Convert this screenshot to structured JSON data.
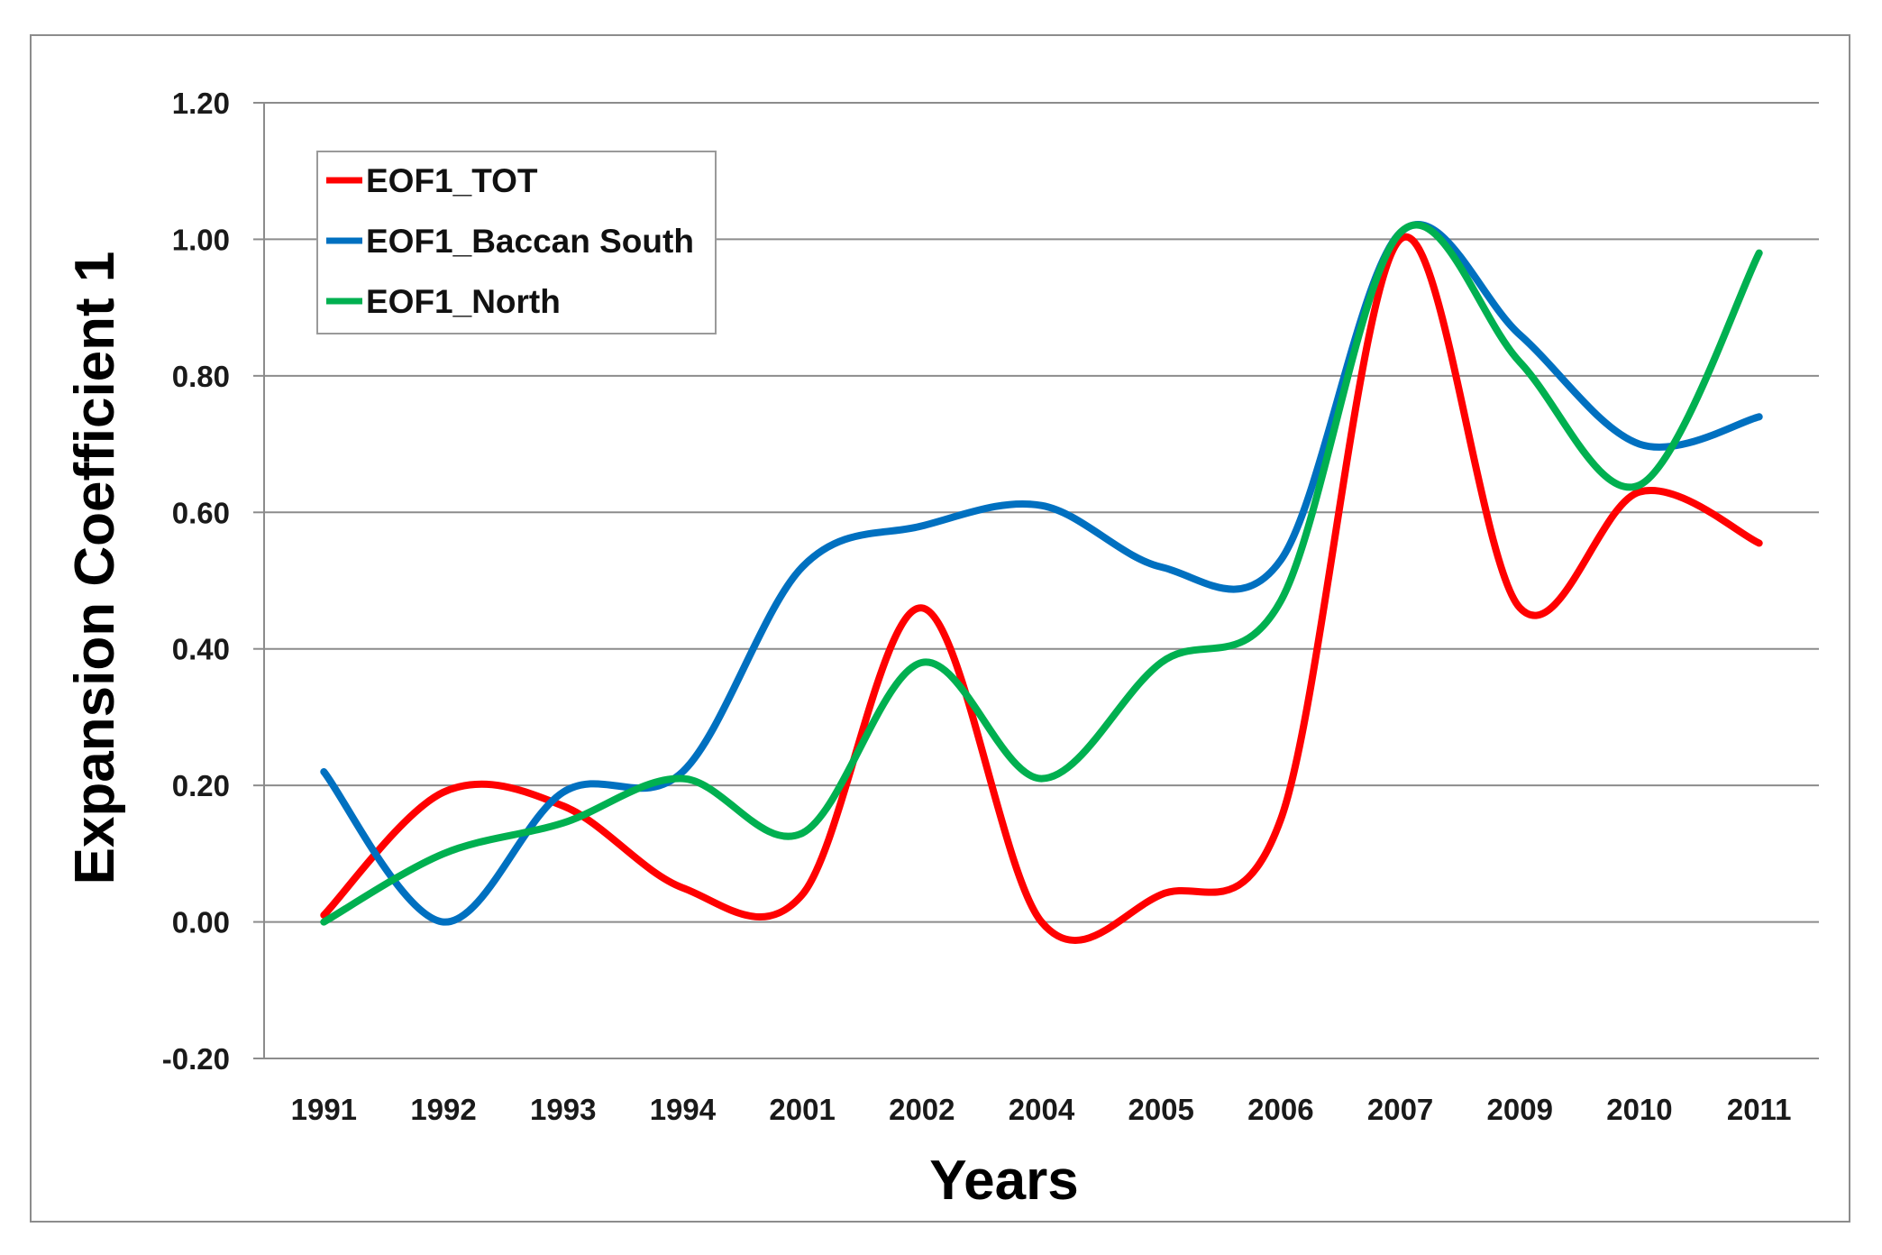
{
  "chart_data": {
    "type": "line",
    "title": "",
    "xlabel": "Years",
    "ylabel": "Expansion Coefficient 1",
    "categories": [
      "1991",
      "1992",
      "1993",
      "1994",
      "2001",
      "2002",
      "2004",
      "2005",
      "2006",
      "2007",
      "2009",
      "2010",
      "2011"
    ],
    "ylim": [
      -0.2,
      1.2
    ],
    "yticks": [
      -0.2,
      0.0,
      0.2,
      0.4,
      0.6,
      0.8,
      1.0,
      1.2
    ],
    "ytick_labels": [
      "-0.20",
      "0.00",
      "0.20",
      "0.40",
      "0.60",
      "0.80",
      "1.00",
      "1.20"
    ],
    "grid": true,
    "legend_position": "top-left",
    "series": [
      {
        "name": "EOF1_TOT",
        "color": "#ff0000",
        "values": [
          0.01,
          0.19,
          0.17,
          0.05,
          0.04,
          0.46,
          0.0,
          0.04,
          0.15,
          1.0,
          0.46,
          0.63,
          0.555
        ]
      },
      {
        "name": "EOF1_Baccan South",
        "color": "#0070c0",
        "values": [
          0.22,
          0.0,
          0.19,
          0.22,
          0.52,
          0.58,
          0.61,
          0.52,
          0.53,
          1.01,
          0.86,
          0.7,
          0.74
        ]
      },
      {
        "name": "EOF1_North",
        "color": "#00b050",
        "values": [
          0.0,
          0.1,
          0.145,
          0.21,
          0.13,
          0.38,
          0.21,
          0.38,
          0.47,
          1.01,
          0.82,
          0.64,
          0.98
        ]
      }
    ]
  }
}
